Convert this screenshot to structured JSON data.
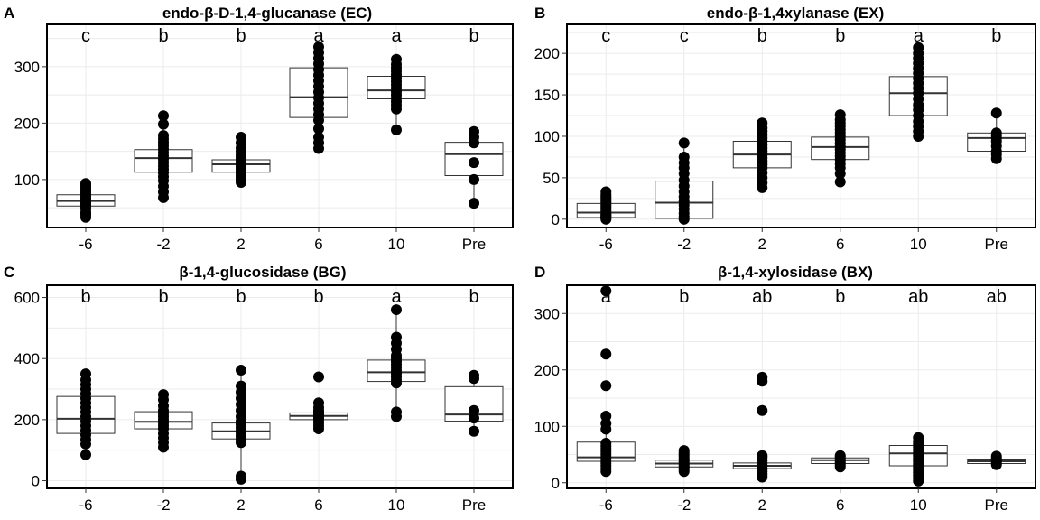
{
  "chart_data": [
    {
      "type": "box",
      "panel_label": "A",
      "title": "endo-β-D-1,4-glucanase (EC)",
      "categories": [
        "-6",
        "-2",
        "2",
        "6",
        "10",
        "Pre"
      ],
      "ylim": [
        15,
        375
      ],
      "yticks": [
        100,
        200,
        300
      ],
      "grid": true,
      "significance": [
        "c",
        "b",
        "b",
        "a",
        "a",
        "b"
      ],
      "boxes": [
        {
          "category": "-6",
          "q1": 53,
          "median": 62,
          "q3": 73,
          "whisker_low": 33,
          "whisker_high": 93
        },
        {
          "category": "-2",
          "q1": 113,
          "median": 138,
          "q3": 153,
          "whisker_low": 68,
          "whisker_high": 213
        },
        {
          "category": "2",
          "q1": 113,
          "median": 127,
          "q3": 135,
          "whisker_low": 95,
          "whisker_high": 175
        },
        {
          "category": "6",
          "q1": 210,
          "median": 246,
          "q3": 298,
          "whisker_low": 155,
          "whisker_high": 335
        },
        {
          "category": "10",
          "q1": 243,
          "median": 258,
          "q3": 283,
          "whisker_low": 188,
          "whisker_high": 313
        },
        {
          "category": "Pre",
          "q1": 107,
          "median": 145,
          "q3": 166,
          "whisker_low": 58,
          "whisker_high": 185
        }
      ],
      "points": [
        [
          33,
          38,
          42,
          48,
          52,
          55,
          58,
          62,
          65,
          68,
          72,
          75,
          78,
          82,
          86,
          90,
          93
        ],
        [
          68,
          78,
          88,
          98,
          105,
          112,
          118,
          124,
          130,
          136,
          142,
          148,
          154,
          160,
          166,
          172,
          178,
          198,
          213
        ],
        [
          95,
          99,
          103,
          107,
          111,
          115,
          119,
          123,
          127,
          131,
          135,
          139,
          144,
          150,
          156,
          165,
          175
        ],
        [
          155,
          165,
          175,
          190,
          205,
          215,
          225,
          235,
          245,
          255,
          265,
          275,
          285,
          295,
          305,
          315,
          325,
          335
        ],
        [
          188,
          225,
          232,
          238,
          244,
          250,
          256,
          262,
          268,
          274,
          280,
          286,
          292,
          298,
          304,
          313
        ],
        [
          58,
          100,
          130,
          165,
          175,
          185
        ]
      ]
    },
    {
      "type": "box",
      "panel_label": "B",
      "title": "endo-β-1,4xylanase (EX)",
      "categories": [
        "-6",
        "-2",
        "2",
        "6",
        "10",
        "Pre"
      ],
      "ylim": [
        -10,
        235
      ],
      "yticks": [
        0,
        50,
        100,
        150,
        200
      ],
      "grid": true,
      "significance": [
        "c",
        "c",
        "b",
        "b",
        "a",
        "b"
      ],
      "boxes": [
        {
          "category": "-6",
          "q1": 2,
          "median": 8,
          "q3": 19,
          "whisker_low": 0,
          "whisker_high": 33
        },
        {
          "category": "-2",
          "q1": 1,
          "median": 20,
          "q3": 46,
          "whisker_low": 0,
          "whisker_high": 92
        },
        {
          "category": "2",
          "q1": 62,
          "median": 78,
          "q3": 94,
          "whisker_low": 38,
          "whisker_high": 116
        },
        {
          "category": "6",
          "q1": 72,
          "median": 87,
          "q3": 99,
          "whisker_low": 45,
          "whisker_high": 126
        },
        {
          "category": "10",
          "q1": 125,
          "median": 152,
          "q3": 172,
          "whisker_low": 100,
          "whisker_high": 207
        },
        {
          "category": "Pre",
          "q1": 82,
          "median": 98,
          "q3": 104,
          "whisker_low": 73,
          "whisker_high": 128
        }
      ],
      "points": [
        [
          0,
          1,
          2,
          3,
          4,
          5,
          6,
          8,
          10,
          12,
          14,
          16,
          18,
          20,
          22,
          24,
          26,
          28,
          30,
          33
        ],
        [
          0,
          3,
          7,
          12,
          17,
          22,
          27,
          33,
          40,
          47,
          55,
          62,
          68,
          75,
          92
        ],
        [
          38,
          44,
          50,
          56,
          62,
          66,
          70,
          74,
          78,
          82,
          86,
          90,
          94,
          98,
          102,
          106,
          110,
          116
        ],
        [
          45,
          55,
          62,
          67,
          72,
          76,
          80,
          84,
          88,
          92,
          96,
          100,
          104,
          108,
          112,
          116,
          120,
          126
        ],
        [
          100,
          106,
          112,
          118,
          125,
          132,
          138,
          145,
          152,
          158,
          164,
          170,
          176,
          182,
          188,
          194,
          200,
          207
        ],
        [
          73,
          78,
          82,
          88,
          94,
          98,
          101,
          104,
          128
        ]
      ]
    },
    {
      "type": "box",
      "panel_label": "C",
      "title": "β-1,4-glucosidase (BG)",
      "categories": [
        "-6",
        "-2",
        "2",
        "6",
        "10",
        "Pre"
      ],
      "ylim": [
        -25,
        640
      ],
      "yticks": [
        0,
        200,
        400,
        600
      ],
      "grid": true,
      "significance": [
        "b",
        "b",
        "b",
        "b",
        "a",
        "b"
      ],
      "boxes": [
        {
          "category": "-6",
          "q1": 155,
          "median": 203,
          "q3": 276,
          "whisker_low": 85,
          "whisker_high": 350
        },
        {
          "category": "-2",
          "q1": 170,
          "median": 193,
          "q3": 226,
          "whisker_low": 110,
          "whisker_high": 282
        },
        {
          "category": "2",
          "q1": 137,
          "median": 162,
          "q3": 189,
          "whisker_low": 5,
          "whisker_high": 362
        },
        {
          "category": "6",
          "q1": 200,
          "median": 212,
          "q3": 222,
          "whisker_low": 170,
          "whisker_high": 255
        },
        {
          "category": "10",
          "q1": 325,
          "median": 355,
          "q3": 395,
          "whisker_low": 210,
          "whisker_high": 560
        },
        {
          "category": "Pre",
          "q1": 195,
          "median": 217,
          "q3": 308,
          "whisker_low": 162,
          "whisker_high": 345
        }
      ],
      "points": [
        [
          85,
          120,
          135,
          150,
          165,
          180,
          195,
          210,
          225,
          240,
          255,
          270,
          285,
          300,
          315,
          330,
          350
        ],
        [
          110,
          125,
          140,
          155,
          170,
          180,
          190,
          200,
          210,
          220,
          230,
          245,
          265,
          282
        ],
        [
          5,
          15,
          125,
          135,
          145,
          155,
          165,
          175,
          185,
          195,
          210,
          230,
          250,
          270,
          290,
          310,
          362
        ],
        [
          170,
          180,
          190,
          200,
          205,
          210,
          215,
          220,
          225,
          230,
          240,
          255,
          340
        ],
        [
          210,
          225,
          320,
          330,
          340,
          350,
          360,
          370,
          380,
          390,
          400,
          410,
          430,
          450,
          470,
          560
        ],
        [
          162,
          205,
          230,
          335,
          345
        ]
      ]
    },
    {
      "type": "box",
      "panel_label": "D",
      "title": "β-1,4-xylosidase (BX)",
      "categories": [
        "-6",
        "-2",
        "2",
        "6",
        "10",
        "Pre"
      ],
      "ylim": [
        -10,
        350
      ],
      "yticks": [
        0,
        100,
        200,
        300
      ],
      "grid": true,
      "significance": [
        "a",
        "b",
        "ab",
        "b",
        "ab",
        "ab"
      ],
      "boxes": [
        {
          "category": "-6",
          "q1": 38,
          "median": 45,
          "q3": 72,
          "whisker_low": 20,
          "whisker_high": 118
        },
        {
          "category": "-2",
          "q1": 28,
          "median": 34,
          "q3": 40,
          "whisker_low": 20,
          "whisker_high": 57
        },
        {
          "category": "2",
          "q1": 25,
          "median": 30,
          "q3": 35,
          "whisker_low": 10,
          "whisker_high": 48
        },
        {
          "category": "6",
          "q1": 34,
          "median": 40,
          "q3": 44,
          "whisker_low": 28,
          "whisker_high": 48
        },
        {
          "category": "10",
          "q1": 30,
          "median": 52,
          "q3": 66,
          "whisker_low": 3,
          "whisker_high": 80
        },
        {
          "category": "Pre",
          "q1": 34,
          "median": 38,
          "q3": 42,
          "whisker_low": 32,
          "whisker_high": 47
        }
      ],
      "points": [
        [
          20,
          25,
          30,
          35,
          40,
          45,
          50,
          55,
          60,
          65,
          70,
          95,
          105,
          118,
          172,
          228,
          340
        ],
        [
          20,
          23,
          26,
          29,
          32,
          35,
          38,
          41,
          44,
          47,
          50,
          53,
          57
        ],
        [
          10,
          15,
          20,
          25,
          30,
          35,
          40,
          45,
          48,
          128,
          180,
          187
        ],
        [
          28,
          31,
          34,
          37,
          40,
          43,
          46,
          48
        ],
        [
          3,
          8,
          13,
          18,
          23,
          28,
          33,
          38,
          43,
          48,
          53,
          58,
          63,
          68,
          73,
          80
        ],
        [
          32,
          35,
          38,
          41,
          44,
          47
        ]
      ]
    }
  ]
}
